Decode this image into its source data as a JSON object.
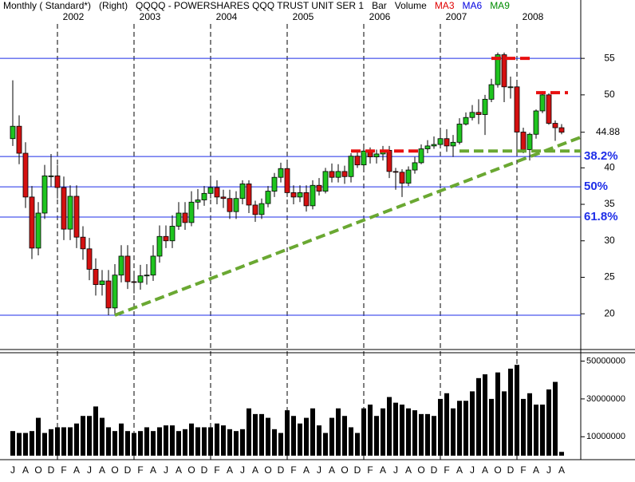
{
  "chart_data": {
    "type": "candlestick",
    "header": "Monthly ( Standard*)   (Right)   QQQQ - POWERSHARES QQQ TRUST UNIT SER 1   Bar   Volume",
    "indicators": [
      {
        "name": "MA3",
        "color": "#e00000"
      },
      {
        "name": "MA6",
        "color": "#0000e0"
      },
      {
        "name": "MA9",
        "color": "#008c00"
      }
    ],
    "categories": [
      "J",
      null,
      "A",
      null,
      "O",
      null,
      "D",
      null,
      "F",
      null,
      "A",
      null,
      "J",
      null,
      "A",
      null,
      "O",
      null,
      "D",
      null,
      "F",
      null,
      "A",
      null,
      "J",
      null,
      "A",
      null,
      "O",
      null,
      "D",
      null,
      "F",
      null,
      "A",
      null,
      "J",
      null,
      "A",
      null,
      "O",
      null,
      "D",
      null,
      "F",
      null,
      "A",
      null,
      "J",
      null,
      "A",
      null,
      "O",
      null,
      "D",
      null,
      "F",
      null,
      "A",
      null,
      "J",
      null,
      "A",
      null,
      "O",
      null,
      "D",
      null,
      "F",
      null,
      "A",
      null,
      "J",
      null,
      "A",
      null,
      "O",
      null,
      "D",
      null,
      "F",
      null,
      "A",
      null,
      "J",
      null,
      "A"
    ],
    "year_starts": [
      {
        "label": "2002",
        "at": 7
      },
      {
        "label": "2003",
        "at": 19
      },
      {
        "label": "2004",
        "at": 31
      },
      {
        "label": "2005",
        "at": 43
      },
      {
        "label": "2006",
        "at": 55
      },
      {
        "label": "2007",
        "at": 67
      },
      {
        "label": "2008",
        "at": 79
      }
    ],
    "open": [
      44.0,
      45.7,
      42.0,
      36.0,
      29.0,
      33.8,
      38.9,
      38.9,
      37.3,
      31.6,
      36.1,
      30.5,
      28.9,
      26.1,
      24.0,
      24.5,
      20.8,
      25.3,
      27.9,
      24.4,
      24.3,
      25.2,
      25.3,
      27.9,
      30.6,
      30.0,
      32.0,
      33.8,
      32.5,
      35.3,
      35.6,
      36.5,
      37.3,
      36.0,
      35.8,
      34.0,
      35.8,
      37.8,
      34.9,
      33.6,
      35.1,
      36.8,
      38.7,
      39.9,
      36.6,
      36.0,
      36.6,
      34.8,
      37.6,
      36.8,
      39.5,
      38.7,
      39.5,
      38.8,
      41.6,
      40.4,
      42.3,
      41.5,
      41.9,
      42.4,
      39.5,
      39.4,
      37.9,
      39.7,
      40.7,
      42.6,
      43.0,
      43.2,
      44.0,
      43.0,
      43.5,
      46.0,
      46.9,
      47.6,
      47.3,
      49.4,
      51.4,
      55.5,
      51.1,
      51.1,
      44.9,
      42.5,
      44.6,
      47.8,
      50.0,
      46.1,
      45.5
    ],
    "high": [
      52.0,
      47.2,
      43.5,
      37.5,
      35.3,
      40.4,
      41.9,
      40.4,
      38.8,
      37.6,
      37.6,
      32.0,
      30.4,
      27.6,
      26.0,
      26.0,
      26.8,
      29.4,
      29.4,
      25.9,
      26.7,
      26.8,
      29.4,
      32.1,
      32.1,
      33.5,
      35.3,
      35.3,
      36.8,
      37.1,
      37.5,
      38.8,
      38.3,
      37.0,
      37.0,
      36.8,
      38.3,
      38.3,
      35.5,
      35.8,
      37.5,
      39.3,
      40.7,
      40.7,
      37.6,
      37.6,
      37.6,
      38.3,
      38.6,
      40.0,
      40.6,
      40.5,
      40.3,
      42.0,
      42.2,
      43.0,
      42.8,
      42.5,
      43.0,
      43.0,
      40.0,
      39.8,
      40.2,
      41.5,
      43.2,
      43.8,
      44.3,
      45.0,
      45.3,
      44.5,
      46.8,
      47.6,
      48.6,
      49.4,
      50.0,
      52.2,
      55.8,
      55.8,
      52.5,
      51.5,
      45.5,
      44.8,
      48.0,
      50.5,
      50.2,
      46.5,
      46.0
    ],
    "low": [
      43.0,
      40.5,
      34.5,
      27.5,
      28.0,
      33.0,
      37.4,
      35.8,
      30.1,
      30.1,
      29.0,
      27.4,
      24.6,
      22.5,
      22.5,
      19.8,
      19.8,
      24.3,
      23.4,
      22.8,
      23.3,
      24.0,
      24.5,
      27.0,
      29.0,
      29.0,
      31.5,
      31.5,
      32.0,
      34.3,
      34.8,
      35.8,
      35.0,
      34.5,
      33.0,
      33.0,
      35.0,
      33.8,
      32.6,
      33.0,
      34.6,
      36.0,
      38.0,
      36.0,
      35.0,
      35.3,
      34.0,
      34.3,
      36.2,
      36.5,
      38.0,
      38.0,
      37.8,
      38.0,
      40.0,
      40.0,
      40.6,
      40.6,
      41.0,
      38.6,
      37.0,
      36.0,
      37.5,
      39.2,
      40.5,
      42.0,
      42.6,
      42.8,
      42.2,
      41.5,
      43.2,
      45.8,
      46.5,
      46.0,
      44.5,
      49.0,
      51.0,
      49.0,
      49.5,
      42.0,
      42.0,
      41.0,
      44.0,
      47.5,
      45.9,
      43.7,
      44.6
    ],
    "close": [
      45.7,
      42.0,
      36.0,
      29.0,
      33.8,
      38.9,
      38.9,
      37.3,
      31.6,
      36.1,
      30.5,
      28.9,
      26.1,
      24.0,
      24.5,
      20.8,
      25.3,
      27.9,
      24.4,
      24.3,
      25.2,
      25.3,
      27.9,
      30.6,
      30.0,
      32.0,
      33.8,
      32.5,
      35.3,
      35.6,
      36.5,
      37.3,
      36.0,
      35.8,
      34.0,
      35.8,
      37.8,
      34.9,
      33.6,
      35.1,
      36.8,
      38.7,
      39.9,
      36.6,
      36.0,
      36.6,
      34.8,
      37.6,
      36.8,
      39.5,
      38.7,
      39.5,
      38.8,
      41.6,
      40.4,
      42.3,
      41.5,
      41.9,
      42.4,
      39.5,
      39.4,
      37.9,
      39.7,
      40.7,
      42.6,
      43.0,
      43.2,
      44.0,
      43.0,
      43.5,
      46.0,
      46.9,
      47.6,
      47.3,
      49.4,
      51.4,
      55.5,
      51.1,
      51.1,
      44.9,
      42.5,
      44.6,
      47.8,
      50.0,
      46.1,
      45.5,
      44.88
    ],
    "up_color": "#1fc41f",
    "down_color": "#d41010",
    "xlim": [
      -2,
      89
    ],
    "ylim": [
      15.1,
      63
    ],
    "yticks": [
      20,
      25,
      30,
      35,
      40,
      50,
      55
    ],
    "last_price": 44.88,
    "levels": [
      {
        "value": 55
      },
      {
        "value": 41.55,
        "label": "38.2%"
      },
      {
        "value": 37.4,
        "label": "50%"
      },
      {
        "value": 33.25,
        "label": "61.8%"
      },
      {
        "value": 19.8
      }
    ],
    "level_color": "#1e2ee8",
    "trendlines": [
      {
        "color": "#6aa832",
        "points": [
          [
            16,
            19.8
          ],
          [
            89,
            44.2
          ]
        ]
      },
      {
        "color": "#6aa832",
        "points": [
          [
            70,
            42.3
          ],
          [
            89,
            42.3
          ]
        ]
      },
      {
        "color": "#e81010",
        "points": [
          [
            53,
            42.3
          ],
          [
            64,
            42.3
          ]
        ]
      },
      {
        "color": "#e81010",
        "points": [
          [
            75,
            55
          ],
          [
            81,
            55
          ]
        ]
      },
      {
        "color": "#e81010",
        "points": [
          [
            82,
            50.3
          ],
          [
            87,
            50.3
          ]
        ]
      }
    ],
    "volume": {
      "color": "#000000",
      "ylim": [
        0,
        54000000
      ],
      "yticks": [
        10000000,
        30000000,
        50000000
      ],
      "values": [
        13000000,
        12000000,
        12000000,
        13000000,
        20000000,
        12000000,
        14000000,
        15000000,
        15000000,
        15000000,
        17000000,
        21000000,
        21000000,
        26000000,
        20000000,
        15000000,
        13000000,
        17000000,
        13000000,
        12000000,
        13000000,
        15000000,
        13000000,
        15000000,
        16000000,
        16000000,
        13000000,
        14000000,
        17000000,
        15000000,
        15000000,
        15000000,
        17000000,
        16000000,
        14000000,
        13000000,
        14000000,
        25000000,
        22000000,
        22000000,
        20000000,
        14000000,
        12000000,
        24000000,
        21000000,
        17000000,
        20000000,
        25000000,
        16000000,
        12000000,
        20000000,
        25000000,
        21000000,
        15000000,
        12000000,
        25000000,
        27000000,
        21000000,
        25000000,
        31000000,
        28000000,
        27000000,
        25000000,
        24000000,
        22000000,
        22000000,
        21000000,
        30000000,
        33000000,
        25000000,
        29000000,
        29000000,
        34000000,
        41000000,
        43000000,
        30000000,
        44000000,
        34000000,
        46000000,
        48000000,
        30000000,
        33000000,
        27000000,
        27000000,
        35000000,
        39000000,
        2000000
      ]
    }
  }
}
